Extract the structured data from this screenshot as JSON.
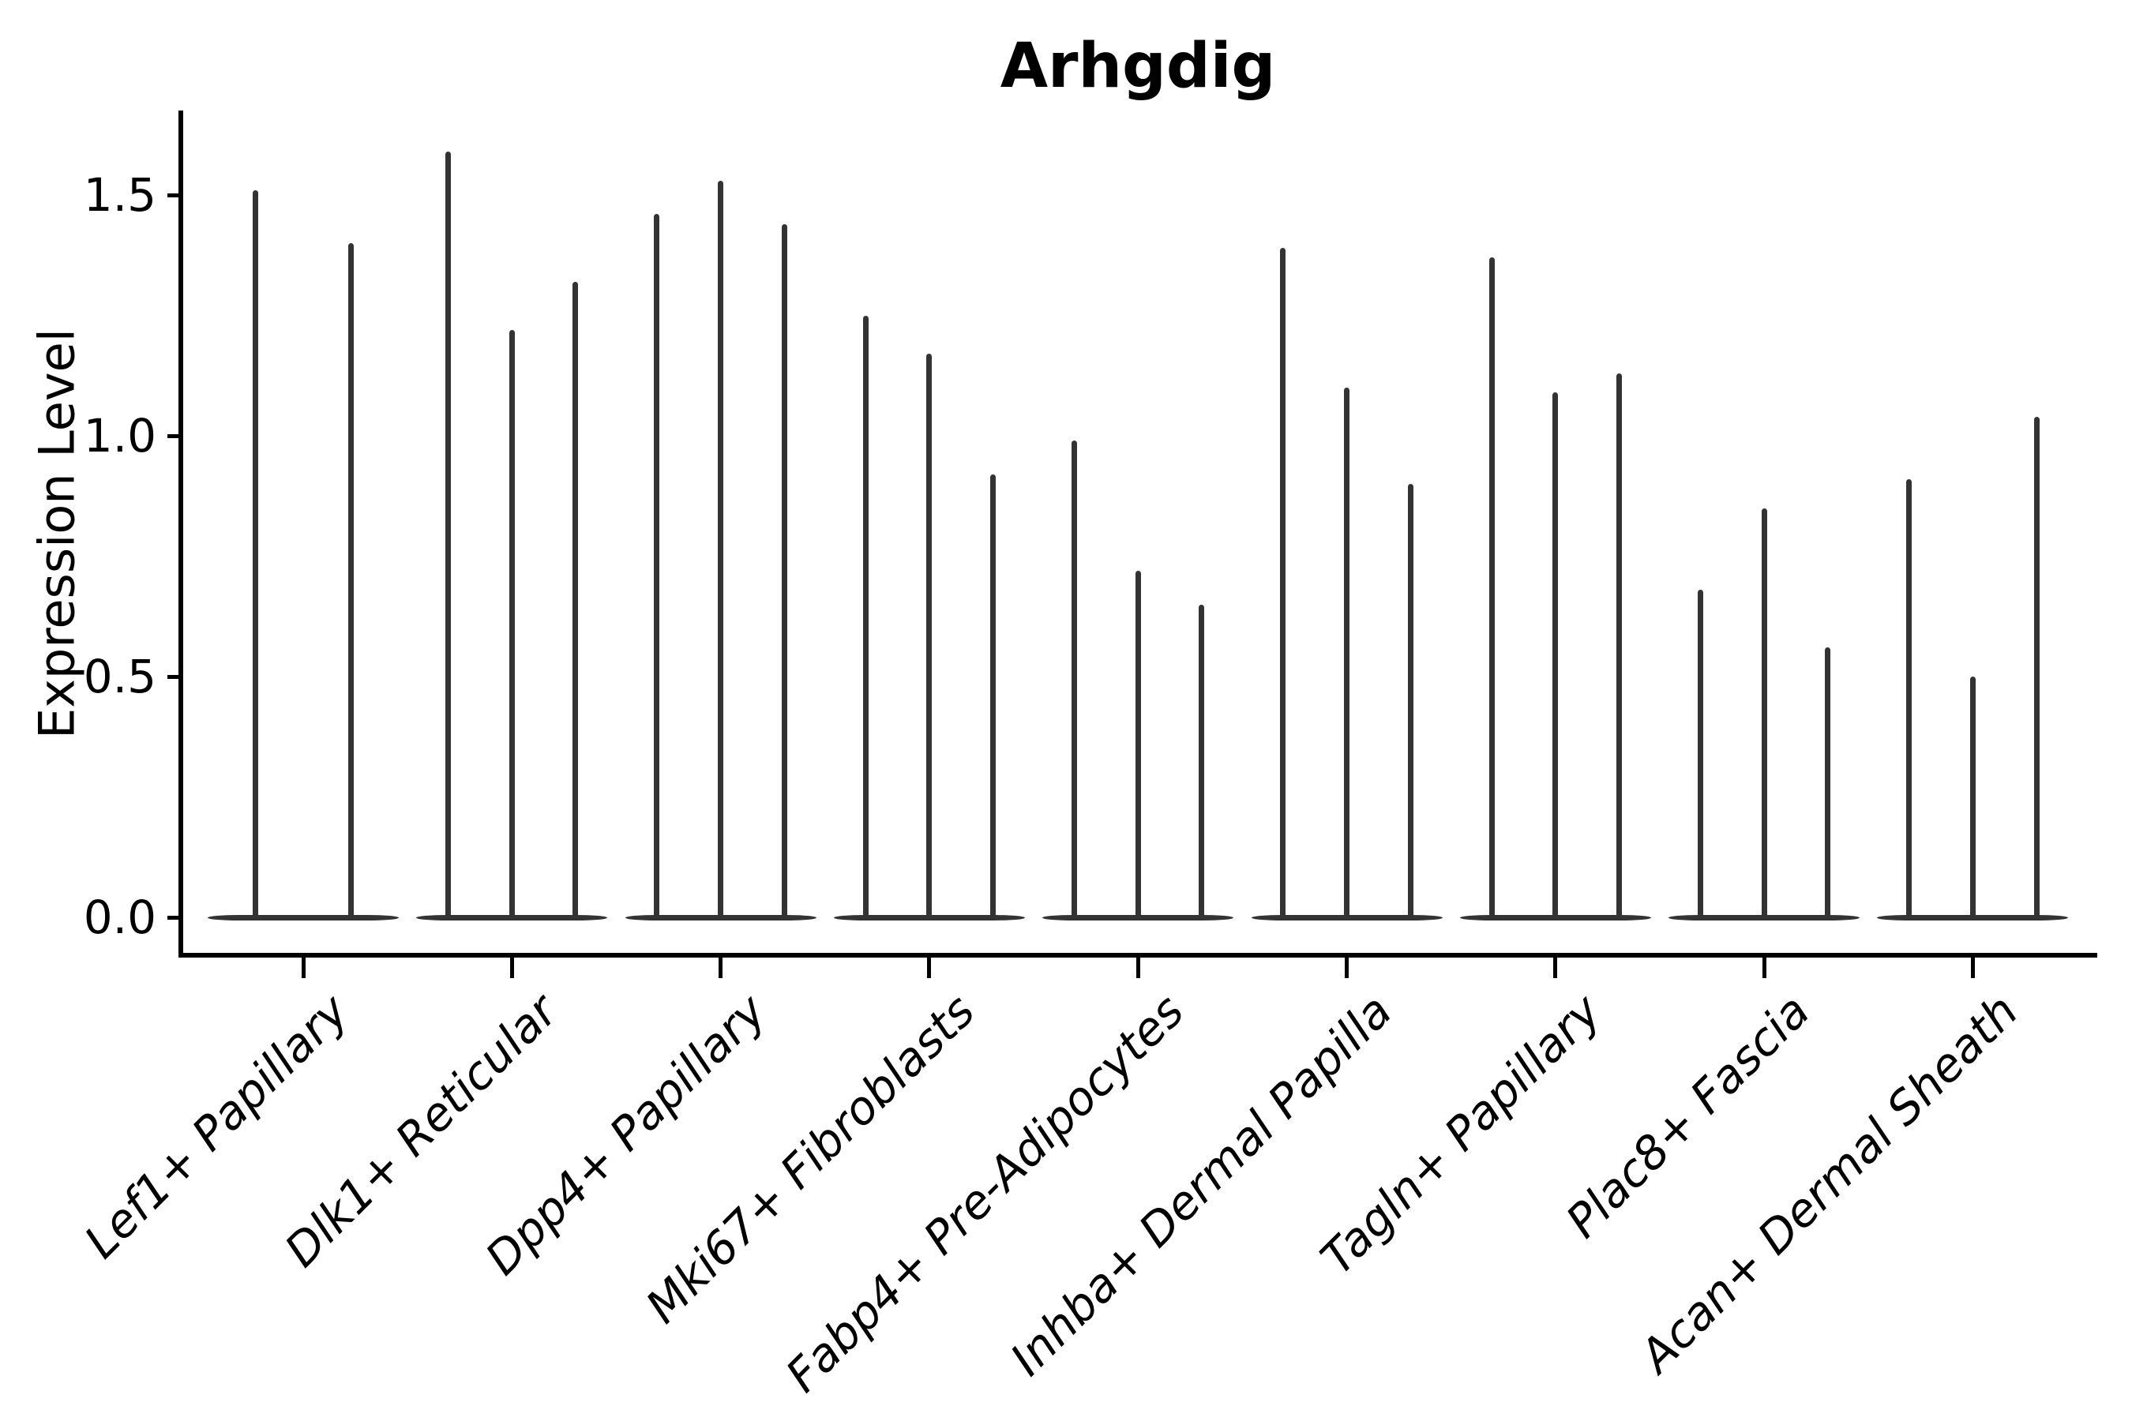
{
  "chart_data": {
    "type": "violin",
    "title": "Arhgdig",
    "xlabel": "",
    "ylabel": "Expression Level",
    "yticks": [
      0.0,
      0.5,
      1.0,
      1.5
    ],
    "ytick_labels": [
      "0.0",
      "0.5",
      "1.0",
      "1.5"
    ],
    "ylim": [
      -0.07,
      1.67
    ],
    "grid": false,
    "legend": false,
    "x_label_rotation_deg": 45,
    "x_label_style": "italic",
    "violin_shape": "flat dense base at 0 with a single thin spike rising to the max expression value",
    "categories": [
      "Lef1+ Papillary",
      "Dlk1+ Reticular",
      "Dpp4+ Papillary",
      "Mki67+ Fibroblasts",
      "Fabp4+ Pre-Adipocytes",
      "Inhba+ Dermal Papilla",
      "Tagln+ Papillary",
      "Plac8+ Fascia",
      "Acan+ Dermal Sheath"
    ],
    "groups": [
      {
        "category": "Lef1+ Papillary",
        "violin_maxima": [
          1.51,
          1.4
        ]
      },
      {
        "category": "Dlk1+ Reticular",
        "violin_maxima": [
          1.59,
          1.22,
          1.32
        ]
      },
      {
        "category": "Dpp4+ Papillary",
        "violin_maxima": [
          1.46,
          1.53,
          1.44
        ]
      },
      {
        "category": "Mki67+ Fibroblasts",
        "violin_maxima": [
          1.25,
          1.17,
          0.92
        ]
      },
      {
        "category": "Fabp4+ Pre-Adipocytes",
        "violin_maxima": [
          0.99,
          0.72,
          0.65
        ]
      },
      {
        "category": "Inhba+ Dermal Papilla",
        "violin_maxima": [
          1.39,
          1.1,
          0.9
        ]
      },
      {
        "category": "Tagln+ Papillary",
        "violin_maxima": [
          1.37,
          1.09,
          1.13
        ]
      },
      {
        "category": "Plac8+ Fascia",
        "violin_maxima": [
          0.68,
          0.85,
          0.56
        ]
      },
      {
        "category": "Acan+ Dermal Sheath",
        "violin_maxima": [
          0.91,
          0.5,
          1.04
        ]
      }
    ],
    "colors": {
      "violin": "#333333",
      "axis": "#000000",
      "text": "#000000",
      "background": "#ffffff"
    }
  }
}
